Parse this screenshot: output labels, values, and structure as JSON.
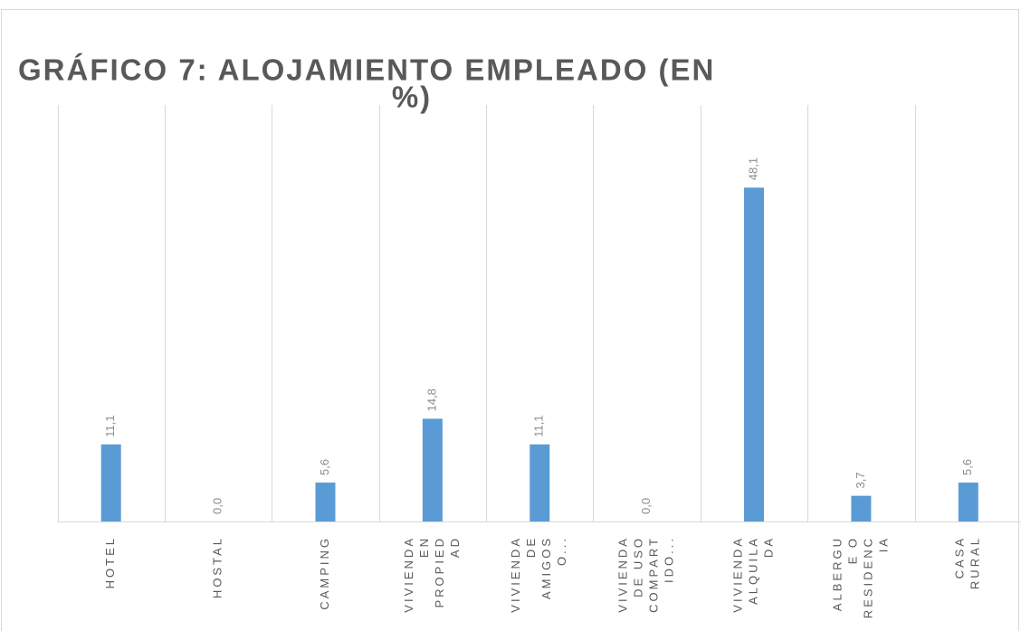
{
  "chart_data": {
    "type": "bar",
    "title": [
      "GRÁFICO 7: ALOJAMIENTO EMPLEADO  (EN",
      "%)"
    ],
    "categories": [
      [
        "HOTEL"
      ],
      [
        "HOSTAL"
      ],
      [
        "CAMPING"
      ],
      [
        "VIVIENDA",
        "EN",
        "PROPIED",
        "AD"
      ],
      [
        "VIVIENDA",
        "DE",
        "AMIGOS",
        "O..."
      ],
      [
        "VIVIENDA",
        "DE USO",
        "COMPART",
        "IDO..."
      ],
      [
        "VIVIENDA",
        "ALQUILA",
        "DA"
      ],
      [
        "ALBERGU",
        "E O",
        "RESIDENC",
        "IA"
      ],
      [
        "CASA",
        "RURAL"
      ]
    ],
    "values": [
      11.1,
      0.0,
      5.6,
      14.8,
      11.1,
      0.0,
      48.1,
      3.7,
      5.6
    ],
    "value_labels": [
      "11,1",
      "0,0",
      "5,6",
      "14,8",
      "11,1",
      "0,0",
      "48,1",
      "3,7",
      "5,6"
    ],
    "color": "#5b9bd5",
    "ylim": [
      0,
      60
    ],
    "grid": true
  }
}
